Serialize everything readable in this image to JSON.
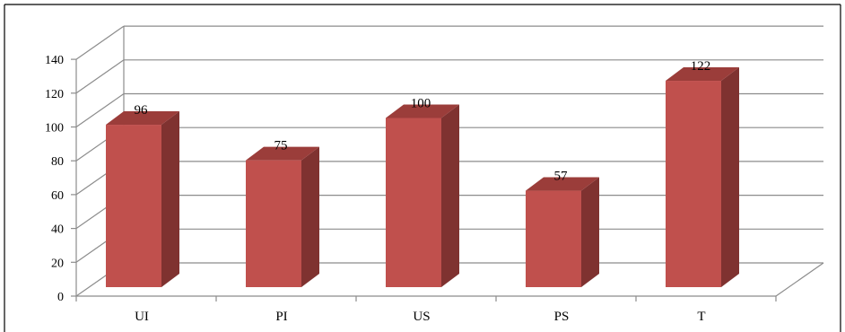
{
  "chart_data": {
    "type": "bar",
    "style": "3d-column",
    "categories": [
      "UI",
      "PI",
      "US",
      "PS",
      "T"
    ],
    "values": [
      96,
      75,
      100,
      57,
      122
    ],
    "data_labels": [
      "96",
      "75",
      "100",
      "57",
      "122"
    ],
    "y_ticks": [
      "0",
      "20",
      "40",
      "60",
      "80",
      "100",
      "120",
      "140"
    ],
    "ylim": [
      0,
      140
    ],
    "grid": true,
    "legend": "none",
    "colors": {
      "bar_front": "#c0504d",
      "bar_side": "#7f3230",
      "bar_top": "#9b3d3a",
      "grid": "#8c8c8c",
      "border": "#000000"
    }
  }
}
